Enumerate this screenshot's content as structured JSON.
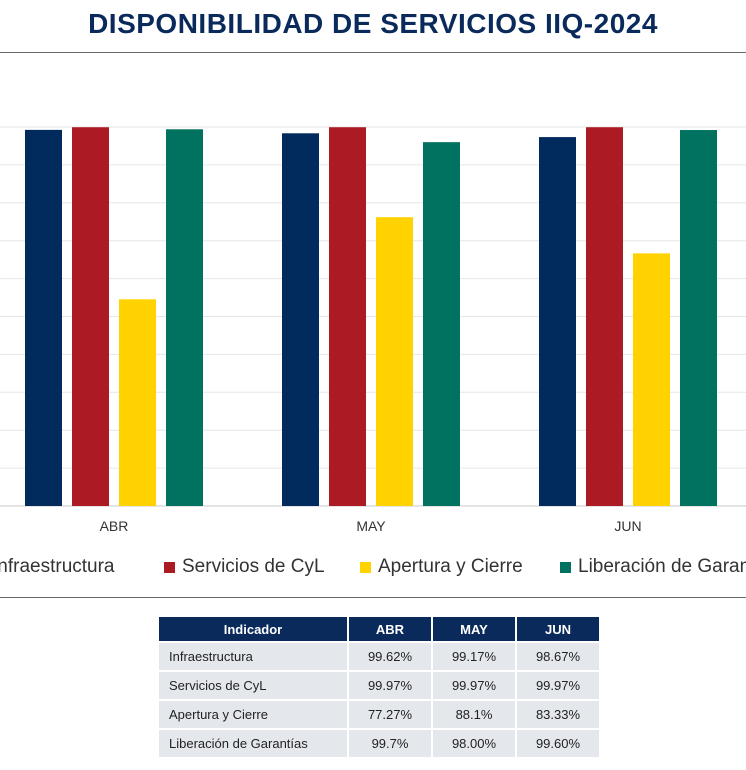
{
  "title": "DISPONIBILIDAD DE SERVICIOS IIQ-2024",
  "chart_data": {
    "type": "bar",
    "categories": [
      "ABR",
      "MAY",
      "JUN"
    ],
    "series": [
      {
        "name": "Infraestructura",
        "values": [
          99.62,
          99.17,
          98.67
        ],
        "color": "#002b5c"
      },
      {
        "name": "Servicios de CyL",
        "values": [
          99.97,
          99.97,
          99.97
        ],
        "color": "#ac1a24"
      },
      {
        "name": "Apertura y Cierre",
        "values": [
          77.27,
          88.1,
          83.33
        ],
        "color": "#ffd200"
      },
      {
        "name": "Liberación de Garantías",
        "values": [
          99.7,
          98.0,
          99.6
        ],
        "color": "#00725f"
      }
    ],
    "ylim": [
      50,
      100
    ],
    "grid": true,
    "legend": "bottom"
  },
  "legend_items": [
    {
      "text": "Infraestructura",
      "color": "#002b5c"
    },
    {
      "text": "Servicios de CyL",
      "color": "#ac1a24"
    },
    {
      "text": "Apertura y Cierre",
      "color": "#ffd200"
    },
    {
      "text": "Liberación de Garantías",
      "color": "#00725f"
    }
  ],
  "table": {
    "headers": [
      "Indicador",
      "ABR",
      "MAY",
      "JUN"
    ],
    "rows": [
      [
        "Infraestructura",
        "99.62%",
        "99.17%",
        "98.67%"
      ],
      [
        "Servicios de CyL",
        "99.97%",
        "99.97%",
        "99.97%"
      ],
      [
        "Apertura y Cierre",
        "77.27%",
        "88.1%",
        "83.33%"
      ],
      [
        "Liberación de Garantías",
        "99.7%",
        "98.00%",
        "99.60%"
      ]
    ]
  }
}
